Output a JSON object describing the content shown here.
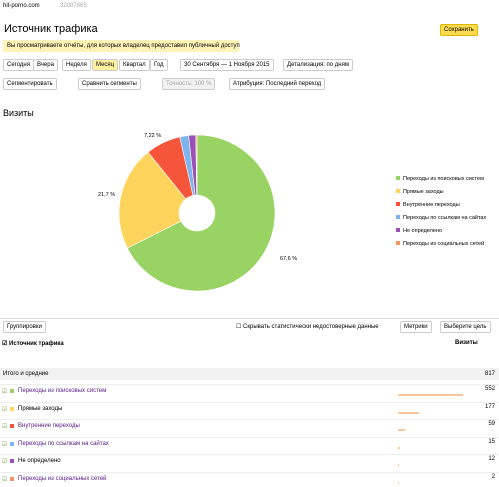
{
  "header": {
    "site": "hit-porno.com",
    "counter": "32087865",
    "title": "Источник трафика",
    "save": "Сохранить"
  },
  "notice": "Вы просматриваете отчёты, для которых владелец предоставил публичный доступ",
  "periods": [
    "Сегодня",
    "Вчера",
    "Неделя",
    "Месяц",
    "Квартал",
    "Год"
  ],
  "date_range": "30 Сентября — 1 Ноября 2015",
  "detail": "Детализация: по дням",
  "toolbar": [
    "Сегментировать",
    "Сравнить сегменты",
    "Точность: 100 %",
    "Атрибуция: Последний переход"
  ],
  "metric_title": "Визиты",
  "donut_labels": [
    "67,6 %",
    "21,7 %",
    "7,22 %"
  ],
  "table": {
    "toolbar": [
      "Группировки",
      "Скрывать статистически недостоверные данные",
      "Метрики",
      "Выберите цель"
    ],
    "column_header": "Источник трафика",
    "metric": "Визиты",
    "total": {
      "label": "Итого и средние",
      "value": 817
    },
    "rows": [
      {
        "name": "Переходы из поисковых систем",
        "value": 552,
        "color": "#98d363"
      },
      {
        "name": "Прямые заходы",
        "value": 177,
        "color": "#ffd45c"
      },
      {
        "name": "Внутренние переходы",
        "value": 59,
        "color": "#f5563b"
      },
      {
        "name": "Переходы по ссылкам на сайтах",
        "value": 15,
        "color": "#7fb4ee"
      },
      {
        "name": "Не определено",
        "value": 12,
        "color": "#9b4fb7"
      },
      {
        "name": "Переходы из социальных сетей",
        "value": 2,
        "color": "#f49561"
      }
    ]
  }
}
